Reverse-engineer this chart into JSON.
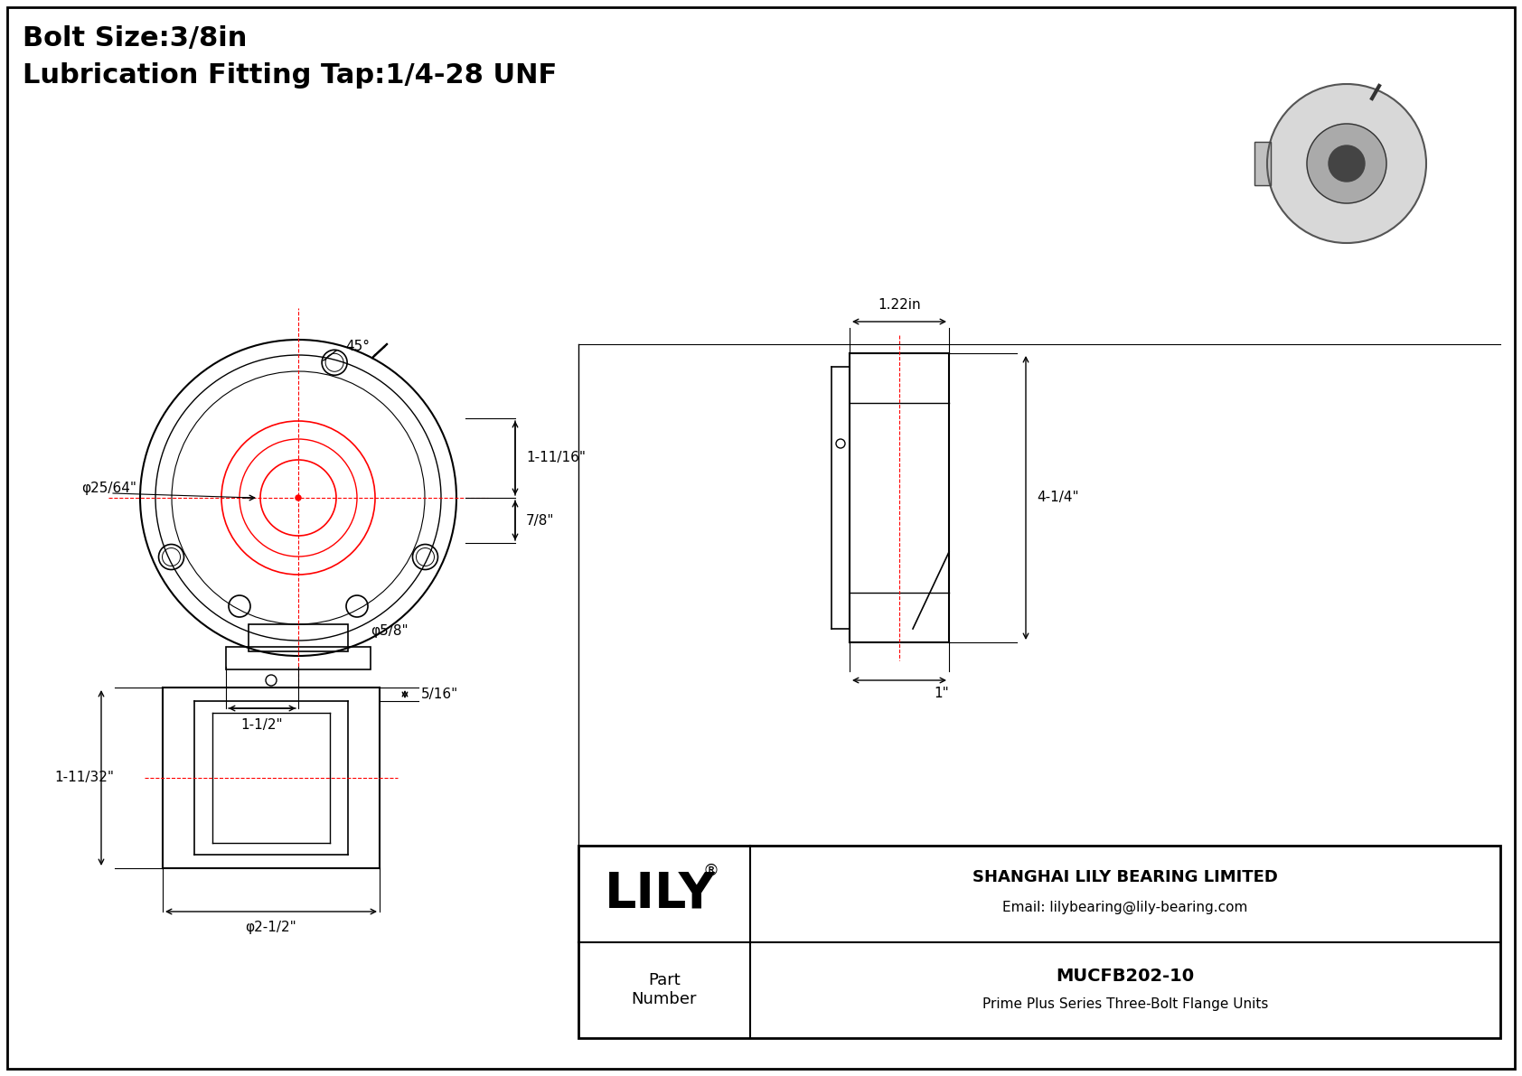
{
  "title_line1": "Bolt Size:3/8in",
  "title_line2": "Lubrication Fitting Tap:1/4-28 UNF",
  "bg_color": "#ffffff",
  "border_color": "#000000",
  "line_color": "#000000",
  "red_color": "#ff0000",
  "company": "SHANGHAI LILY BEARING LIMITED",
  "email": "Email: lilybearing@lily-bearing.com",
  "part_number_label": "Part\nNumber",
  "part_number": "MUCFB202-10",
  "series": "Prime Plus Series Three-Bolt Flange Units",
  "lily_text": "LILY",
  "dim_45": "45°",
  "dim_1_11_16": "1-11/16\"",
  "dim_7_8": "7/8\"",
  "dim_phi_25_64": "φ25/64\"",
  "dim_phi_5_8": "φ5/8\"",
  "dim_1_1_2": "1-1/2\"",
  "dim_4_1_4": "4-1/4\"",
  "dim_1_22in": "1.22in",
  "dim_1": "1\"",
  "dim_5_16": "5/16\"",
  "dim_1_11_32": "1-11/32\"",
  "dim_phi_2_1_2": "φ2-1/2\""
}
